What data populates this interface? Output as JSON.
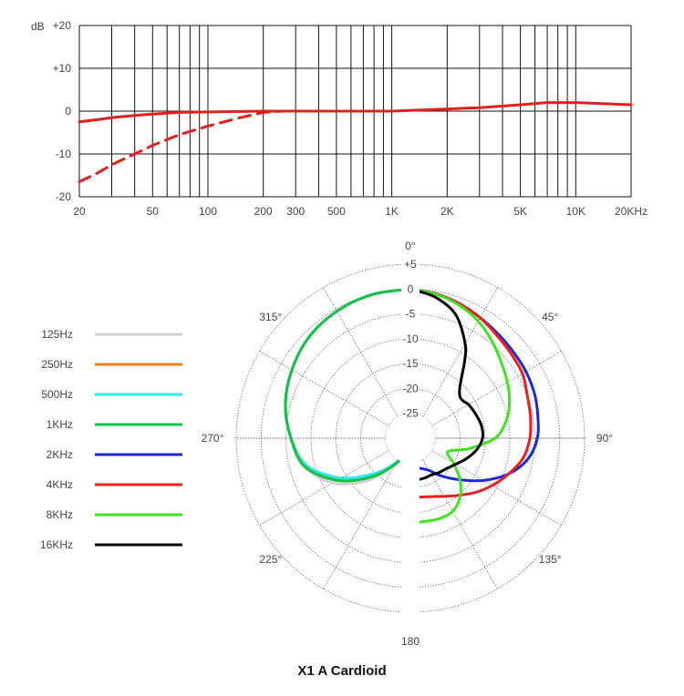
{
  "chart_data": [
    {
      "type": "line",
      "title": "",
      "xlabel": "",
      "ylabel": "dB",
      "x_scale": "log",
      "xlim": [
        20,
        20000
      ],
      "ylim": [
        -20,
        20
      ],
      "grid": true,
      "y_ticks": [
        {
          "value": 20,
          "label": "+20"
        },
        {
          "value": 10,
          "label": "+10"
        },
        {
          "value": 0,
          "label": "0"
        },
        {
          "value": -10,
          "label": "-10"
        },
        {
          "value": -20,
          "label": "-20"
        }
      ],
      "x_ticks": [
        {
          "value": 20,
          "label": "20"
        },
        {
          "value": 50,
          "label": "50"
        },
        {
          "value": 100,
          "label": "100"
        },
        {
          "value": 200,
          "label": "200"
        },
        {
          "value": 300,
          "label": "300"
        },
        {
          "value": 500,
          "label": "500"
        },
        {
          "value": 1000,
          "label": "1K"
        },
        {
          "value": 2000,
          "label": "2K"
        },
        {
          "value": 5000,
          "label": "5K"
        },
        {
          "value": 10000,
          "label": "10K"
        },
        {
          "value": 20000,
          "label": "20KHz"
        }
      ],
      "series": [
        {
          "style": "solid",
          "color": "#e02020",
          "points": [
            [
              20,
              -2.5
            ],
            [
              25,
              -2.0
            ],
            [
              30,
              -1.5
            ],
            [
              40,
              -1.0
            ],
            [
              50,
              -0.7
            ],
            [
              70,
              -0.3
            ],
            [
              100,
              -0.2
            ],
            [
              200,
              0
            ],
            [
              500,
              0
            ],
            [
              1000,
              0
            ],
            [
              2000,
              0.5
            ],
            [
              3000,
              0.8
            ],
            [
              5000,
              1.5
            ],
            [
              7000,
              2.0
            ],
            [
              10000,
              2.0
            ],
            [
              20000,
              1.5
            ]
          ]
        },
        {
          "style": "dashed",
          "color": "#e02020",
          "points": [
            [
              20,
              -16.5
            ],
            [
              25,
              -14.5
            ],
            [
              30,
              -12.5
            ],
            [
              40,
              -10.0
            ],
            [
              50,
              -8.0
            ],
            [
              70,
              -5.5
            ],
            [
              100,
              -3.5
            ],
            [
              150,
              -1.5
            ],
            [
              200,
              -0.3
            ],
            [
              250,
              0
            ]
          ]
        }
      ]
    },
    {
      "type": "polar",
      "title": "X1 A Cardioid",
      "r_ticks": [
        {
          "value": 5,
          "label": "+5"
        },
        {
          "value": 0,
          "label": "0"
        },
        {
          "value": -5,
          "label": "-5"
        },
        {
          "value": -10,
          "label": "-10"
        },
        {
          "value": -15,
          "label": "-15"
        },
        {
          "value": -20,
          "label": "-20"
        },
        {
          "value": -25,
          "label": "-25"
        }
      ],
      "rlim": [
        -30,
        5
      ],
      "angle_labels": [
        {
          "angle": 0,
          "label": "0°"
        },
        {
          "angle": 45,
          "label": "45°"
        },
        {
          "angle": 90,
          "label": "90°"
        },
        {
          "angle": 135,
          "label": "135°"
        },
        {
          "angle": 180,
          "label": "180"
        },
        {
          "angle": 225,
          "label": "225°"
        },
        {
          "angle": 270,
          "label": "270°"
        },
        {
          "angle": 315,
          "label": "315°"
        }
      ],
      "legend_position": "left",
      "series": [
        {
          "name": "125Hz",
          "color": "#d0d0d0",
          "points": [
            [
              180,
              -28.5
            ],
            [
              195,
              -27
            ],
            [
              210,
              -24
            ],
            [
              225,
              -18
            ],
            [
              240,
              -12
            ],
            [
              255,
              -8
            ],
            [
              270,
              -6
            ],
            [
              285,
              -4
            ],
            [
              300,
              -2.5
            ],
            [
              315,
              -1.2
            ],
            [
              330,
              -0.5
            ],
            [
              345,
              -0.1
            ],
            [
              360,
              0
            ]
          ]
        },
        {
          "name": "250Hz",
          "color": "#f07c1a",
          "points": [
            [
              195,
              -28
            ],
            [
              210,
              -24
            ],
            [
              225,
              -19.5
            ],
            [
              240,
              -13.5
            ],
            [
              255,
              -8.5
            ],
            [
              270,
              -6
            ],
            [
              285,
              -4
            ],
            [
              300,
              -2.5
            ],
            [
              315,
              -1.2
            ],
            [
              330,
              -0.5
            ],
            [
              345,
              -0.1
            ],
            [
              360,
              0
            ]
          ]
        },
        {
          "name": "500Hz",
          "color": "#2ae8e8",
          "points": [
            [
              183,
              -29
            ],
            [
              195,
              -28
            ],
            [
              210,
              -24.5
            ],
            [
              225,
              -20
            ],
            [
              240,
              -14
            ],
            [
              255,
              -8.5
            ],
            [
              270,
              -6
            ],
            [
              285,
              -4
            ],
            [
              300,
              -2.5
            ],
            [
              315,
              -1.2
            ],
            [
              330,
              -0.5
            ],
            [
              345,
              -0.1
            ],
            [
              360,
              0
            ]
          ]
        },
        {
          "name": "1KHz",
          "color": "#18c04a",
          "points": [
            [
              183,
              -29
            ],
            [
              195,
              -27.5
            ],
            [
              210,
              -24
            ],
            [
              225,
              -19
            ],
            [
              240,
              -13
            ],
            [
              255,
              -8
            ],
            [
              270,
              -6
            ],
            [
              285,
              -4
            ],
            [
              300,
              -2.5
            ],
            [
              315,
              -1.2
            ],
            [
              330,
              -0.5
            ],
            [
              345,
              -0.1
            ],
            [
              360,
              0
            ]
          ]
        },
        {
          "name": "2KHz",
          "color": "#1a2ad8",
          "points": [
            [
              0,
              0
            ],
            [
              10,
              -0.5
            ],
            [
              20,
              -1.2
            ],
            [
              30,
              -2
            ],
            [
              40,
              -2.6
            ],
            [
              50,
              -3
            ],
            [
              60,
              -3.2
            ],
            [
              70,
              -3.5
            ],
            [
              80,
              -4
            ],
            [
              90,
              -4.5
            ],
            [
              100,
              -6
            ],
            [
              110,
              -9
            ],
            [
              120,
              -13
            ],
            [
              130,
              -17
            ],
            [
              140,
              -20
            ],
            [
              150,
              -22.5
            ],
            [
              160,
              -23.5
            ],
            [
              170,
              -24
            ],
            [
              178,
              -24
            ]
          ]
        },
        {
          "name": "4KHz",
          "color": "#e82020",
          "points": [
            [
              0,
              0
            ],
            [
              10,
              -0.5
            ],
            [
              20,
              -1.2
            ],
            [
              30,
              -2
            ],
            [
              40,
              -3
            ],
            [
              50,
              -3.6
            ],
            [
              60,
              -4
            ],
            [
              70,
              -5
            ],
            [
              80,
              -5.5
            ],
            [
              90,
              -6
            ],
            [
              100,
              -7
            ],
            [
              110,
              -9
            ],
            [
              120,
              -11
            ],
            [
              130,
              -13
            ],
            [
              140,
              -15
            ],
            [
              150,
              -16.5
            ],
            [
              160,
              -17.5
            ],
            [
              170,
              -18
            ],
            [
              178,
              -18
            ]
          ]
        },
        {
          "name": "8KHz",
          "color": "#44e024",
          "points": [
            [
              0,
              0
            ],
            [
              10,
              -0.6
            ],
            [
              20,
              -1.5
            ],
            [
              30,
              -2.8
            ],
            [
              40,
              -4.5
            ],
            [
              50,
              -6.2
            ],
            [
              60,
              -7.5
            ],
            [
              70,
              -8.8
            ],
            [
              80,
              -10.5
            ],
            [
              90,
              -13
            ],
            [
              100,
              -18
            ],
            [
              110,
              -22
            ],
            [
              120,
              -20
            ],
            [
              130,
              -17
            ],
            [
              140,
              -14.5
            ],
            [
              150,
              -13
            ],
            [
              160,
              -12.8
            ],
            [
              170,
              -13
            ],
            [
              178,
              -13
            ]
          ]
        },
        {
          "name": "16KHz",
          "color": "#000000",
          "points": [
            [
              0,
              0
            ],
            [
              10,
              -1.2
            ],
            [
              20,
              -3.5
            ],
            [
              30,
              -8
            ],
            [
              35,
              -11
            ],
            [
              40,
              -14
            ],
            [
              45,
              -16
            ],
            [
              50,
              -17
            ],
            [
              55,
              -17
            ],
            [
              60,
              -16.5
            ],
            [
              70,
              -16
            ],
            [
              80,
              -15.5
            ],
            [
              90,
              -15.5
            ],
            [
              100,
              -16.5
            ],
            [
              110,
              -18
            ],
            [
              120,
              -19.5
            ],
            [
              130,
              -20.5
            ],
            [
              140,
              -21
            ],
            [
              150,
              -21.5
            ],
            [
              160,
              -21.5
            ],
            [
              170,
              -21.5
            ],
            [
              178,
              -21.5
            ]
          ]
        }
      ]
    }
  ]
}
